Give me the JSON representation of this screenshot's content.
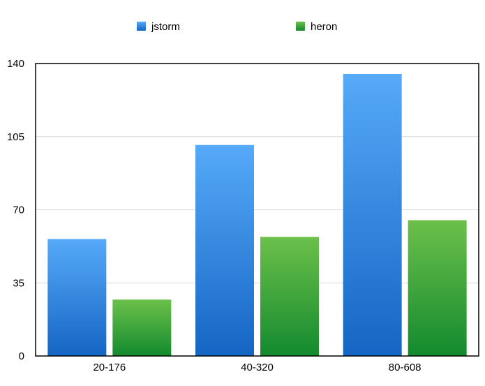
{
  "chart_data": {
    "type": "bar",
    "categories": [
      "20-176",
      "40-320",
      "80-608"
    ],
    "series": [
      {
        "name": "jstorm",
        "values": [
          56,
          101,
          135
        ],
        "color": "#3a8ee6"
      },
      {
        "name": "heron",
        "values": [
          27,
          57,
          65
        ],
        "color": "#3fa83f"
      }
    ],
    "ylim": [
      0,
      140
    ],
    "yticks": [
      0,
      35,
      70,
      105,
      140
    ],
    "grid": true,
    "legend_position": "top-center"
  }
}
